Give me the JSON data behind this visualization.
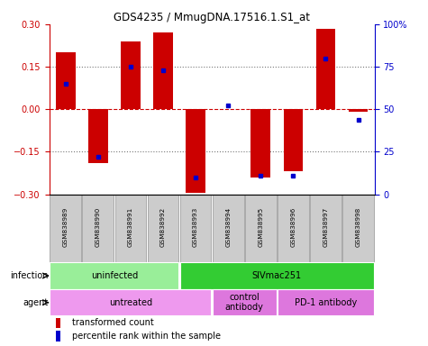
{
  "title": "GDS4235 / MmugDNA.17516.1.S1_at",
  "samples": [
    "GSM838989",
    "GSM838990",
    "GSM838991",
    "GSM838992",
    "GSM838993",
    "GSM838994",
    "GSM838995",
    "GSM838996",
    "GSM838997",
    "GSM838998"
  ],
  "transformed_count": [
    0.2,
    -0.19,
    0.24,
    0.27,
    -0.295,
    0.0,
    -0.24,
    -0.22,
    0.285,
    -0.01
  ],
  "percentile_rank": [
    65,
    22,
    75,
    73,
    10,
    52,
    11,
    11,
    80,
    44
  ],
  "ylim": [
    -0.3,
    0.3
  ],
  "y_ticks_left": [
    -0.3,
    -0.15,
    0,
    0.15,
    0.3
  ],
  "bar_color": "#cc0000",
  "dot_color": "#0000cc",
  "zero_line_color": "#cc0000",
  "infection_groups": [
    {
      "label": "uninfected",
      "start": 0,
      "end": 4,
      "color": "#99ee99"
    },
    {
      "label": "SIVmac251",
      "start": 4,
      "end": 10,
      "color": "#33cc33"
    }
  ],
  "agent_groups": [
    {
      "label": "untreated",
      "start": 0,
      "end": 5,
      "color": "#ee99ee"
    },
    {
      "label": "control\nantibody",
      "start": 5,
      "end": 7,
      "color": "#dd77dd"
    },
    {
      "label": "PD-1 antibody",
      "start": 7,
      "end": 10,
      "color": "#dd77dd"
    }
  ],
  "legend_items": [
    {
      "label": "transformed count",
      "color": "#cc0000"
    },
    {
      "label": "percentile rank within the sample",
      "color": "#0000cc"
    }
  ],
  "infection_label": "infection",
  "agent_label": "agent",
  "bar_width": 0.6,
  "sample_box_color": "#cccccc",
  "sample_box_edge": "#aaaaaa"
}
